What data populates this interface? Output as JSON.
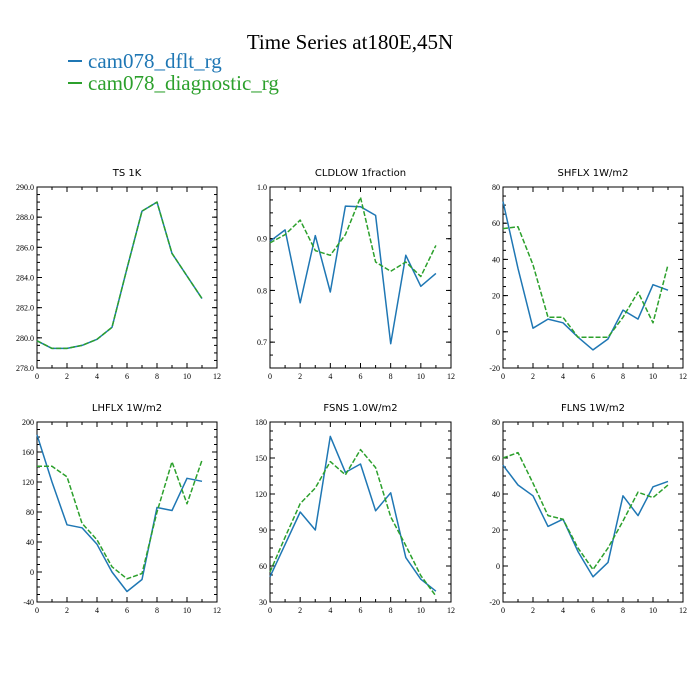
{
  "page_title": "Time Series at180E,45N",
  "legend": [
    {
      "label": "cam078_dflt_rg",
      "color": "#1f77b4"
    },
    {
      "label": "cam078_diagnostic_rg",
      "color": "#2ca02c"
    }
  ],
  "chart_data": [
    {
      "type": "line",
      "title": "TS   1K",
      "xlim": [
        0,
        12
      ],
      "x_ticks": [
        "0",
        "2",
        "4",
        "6",
        "8",
        "10",
        "12"
      ],
      "ylim": [
        278,
        290
      ],
      "y_ticks": [
        "278.0",
        "280.0",
        "282.0",
        "284.0",
        "286.0",
        "288.0",
        "290.0"
      ],
      "x": [
        0,
        1,
        2,
        3,
        4,
        5,
        6,
        7,
        8,
        9,
        10,
        11
      ],
      "series": [
        {
          "name": "cam078_dflt_rg",
          "color": "#1f77b4",
          "dashed": false,
          "values": [
            279.8,
            279.3,
            279.3,
            279.5,
            279.9,
            280.7,
            284.6,
            288.4,
            289.0,
            285.6,
            284.1,
            282.6
          ]
        },
        {
          "name": "cam078_diagnostic_rg",
          "color": "#2ca02c",
          "dashed": true,
          "values": [
            279.8,
            279.3,
            279.3,
            279.5,
            279.9,
            280.7,
            284.6,
            288.4,
            289.0,
            285.6,
            284.1,
            282.6
          ]
        }
      ]
    },
    {
      "type": "line",
      "title": "CLDLOW   1fraction",
      "xlim": [
        0,
        12
      ],
      "x_ticks": [
        "0",
        "2",
        "4",
        "6",
        "8",
        "10",
        "12"
      ],
      "ylim": [
        0.65,
        1.0
      ],
      "y_ticks": [
        "0.7",
        "0.8",
        "0.9",
        "1.0"
      ],
      "y_tick_values": [
        0.7,
        0.8,
        0.9,
        1.0
      ],
      "x": [
        0,
        1,
        2,
        3,
        4,
        5,
        6,
        7,
        8,
        9,
        10,
        11
      ],
      "series": [
        {
          "name": "cam078_dflt_rg",
          "color": "#1f77b4",
          "dashed": false,
          "values": [
            0.895,
            0.917,
            0.776,
            0.906,
            0.797,
            0.963,
            0.962,
            0.945,
            0.697,
            0.868,
            0.808,
            0.833
          ]
        },
        {
          "name": "cam078_diagnostic_rg",
          "color": "#2ca02c",
          "dashed": true,
          "values": [
            0.892,
            0.908,
            0.936,
            0.877,
            0.868,
            0.908,
            0.98,
            0.855,
            0.837,
            0.855,
            0.827,
            0.887
          ]
        }
      ]
    },
    {
      "type": "line",
      "title": "SHFLX   1W/m2",
      "xlim": [
        0,
        12
      ],
      "x_ticks": [
        "0",
        "2",
        "4",
        "6",
        "8",
        "10",
        "12"
      ],
      "ylim": [
        -20,
        80
      ],
      "y_ticks": [
        "-20",
        "0",
        "20",
        "40",
        "60",
        "80"
      ],
      "x": [
        0,
        1,
        2,
        3,
        4,
        5,
        6,
        7,
        8,
        9,
        10,
        11
      ],
      "series": [
        {
          "name": "cam078_dflt_rg",
          "color": "#1f77b4",
          "dashed": false,
          "values": [
            72,
            35,
            2,
            7,
            5,
            -3,
            -10,
            -4,
            12,
            7,
            26,
            23
          ]
        },
        {
          "name": "cam078_diagnostic_rg",
          "color": "#2ca02c",
          "dashed": true,
          "values": [
            57,
            58,
            37,
            8,
            8,
            -3,
            -3,
            -3,
            8,
            22,
            5,
            37
          ]
        }
      ]
    },
    {
      "type": "line",
      "title": "LHFLX   1W/m2",
      "xlim": [
        0,
        12
      ],
      "x_ticks": [
        "0",
        "2",
        "4",
        "6",
        "8",
        "10",
        "12"
      ],
      "ylim": [
        -40,
        200
      ],
      "y_ticks": [
        "-40",
        "0",
        "40",
        "80",
        "120",
        "160",
        "200"
      ],
      "x": [
        0,
        1,
        2,
        3,
        4,
        5,
        6,
        7,
        8,
        9,
        10,
        11
      ],
      "series": [
        {
          "name": "cam078_dflt_rg",
          "color": "#1f77b4",
          "dashed": false,
          "values": [
            183,
            120,
            63,
            59,
            37,
            0,
            -26,
            -10,
            86,
            82,
            125,
            121
          ]
        },
        {
          "name": "cam078_diagnostic_rg",
          "color": "#2ca02c",
          "dashed": true,
          "values": [
            141,
            141,
            127,
            65,
            43,
            7,
            -9,
            -2,
            80,
            147,
            91,
            149
          ]
        }
      ]
    },
    {
      "type": "line",
      "title": "FSNS   1.0W/m2",
      "xlim": [
        0,
        12
      ],
      "x_ticks": [
        "0",
        "2",
        "4",
        "6",
        "8",
        "10",
        "12"
      ],
      "ylim": [
        30,
        180
      ],
      "y_ticks": [
        "30",
        "60",
        "90",
        "120",
        "150",
        "180"
      ],
      "x": [
        0,
        1,
        2,
        3,
        4,
        5,
        6,
        7,
        8,
        9,
        10,
        11
      ],
      "series": [
        {
          "name": "cam078_dflt_rg",
          "color": "#1f77b4",
          "dashed": false,
          "values": [
            51,
            78,
            105,
            90,
            168,
            138,
            145,
            106,
            121,
            67,
            49,
            39
          ]
        },
        {
          "name": "cam078_diagnostic_rg",
          "color": "#2ca02c",
          "dashed": true,
          "values": [
            55,
            84,
            112,
            125,
            147,
            136,
            157,
            142,
            101,
            77,
            52,
            35
          ]
        }
      ]
    },
    {
      "type": "line",
      "title": "FLNS   1W/m2",
      "xlim": [
        0,
        12
      ],
      "x_ticks": [
        "0",
        "2",
        "4",
        "6",
        "8",
        "10",
        "12"
      ],
      "ylim": [
        -20,
        80
      ],
      "y_ticks": [
        "-20",
        "0",
        "20",
        "40",
        "60",
        "80"
      ],
      "x": [
        0,
        1,
        2,
        3,
        4,
        5,
        6,
        7,
        8,
        9,
        10,
        11
      ],
      "series": [
        {
          "name": "cam078_dflt_rg",
          "color": "#1f77b4",
          "dashed": false,
          "values": [
            56,
            45,
            39,
            22,
            26,
            8,
            -6,
            2,
            39,
            28,
            44,
            47
          ]
        },
        {
          "name": "cam078_diagnostic_rg",
          "color": "#2ca02c",
          "dashed": true,
          "values": [
            60,
            63,
            46,
            28,
            26,
            10,
            -2,
            10,
            25,
            41,
            38,
            45
          ]
        }
      ]
    }
  ]
}
